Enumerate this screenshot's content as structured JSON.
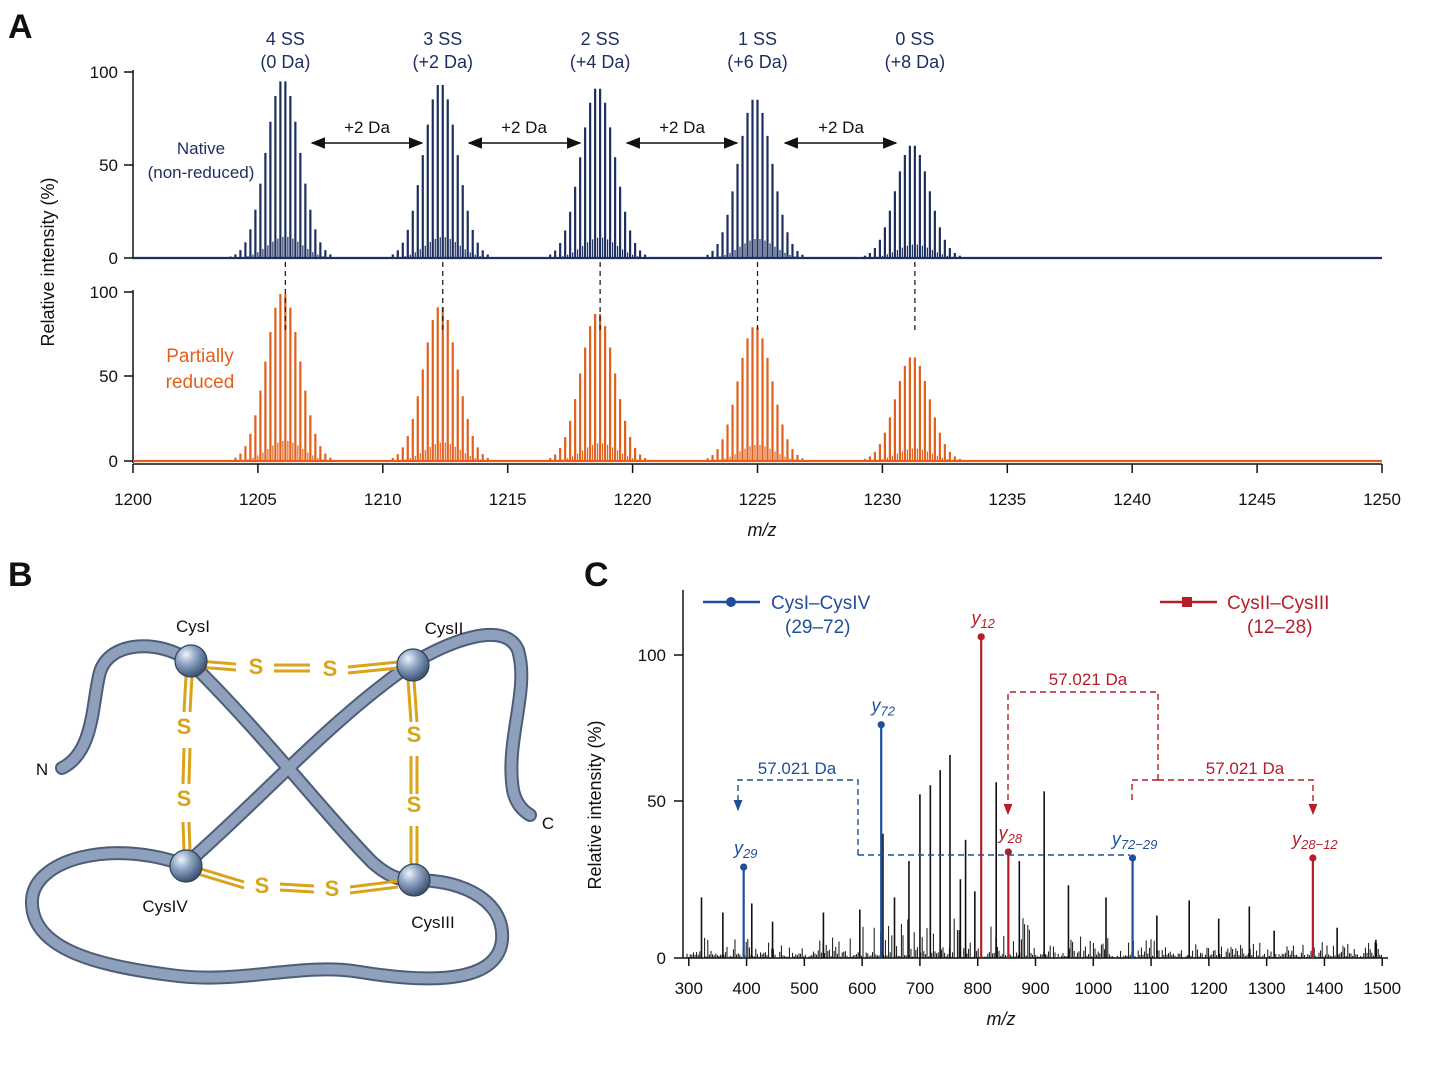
{
  "panels": {
    "a": "A",
    "b": "B",
    "c": "C"
  },
  "colors": {
    "native": "#1c2f5e",
    "reduced": "#e2601c",
    "blue": "#1f4e9a",
    "red": "#b51e28",
    "black": "#111111",
    "strand": "#8a9bb6",
    "gold": "#d9a31a"
  },
  "chart_data": [
    {
      "panel": "A",
      "type": "line",
      "xlabel": "m/z",
      "ylabel": "Relative intensity (%)",
      "xlim": [
        1200,
        1250
      ],
      "xticks": [
        "1200",
        "1205",
        "1210",
        "1215",
        "1220",
        "1225",
        "1230",
        "1235",
        "1240",
        "1245",
        "1250"
      ],
      "yticks": [
        "0",
        "50",
        "100"
      ],
      "ylim": [
        0,
        100
      ],
      "grid": false,
      "series": [
        {
          "name": "Native (non-reduced)",
          "label_lines": [
            "Native",
            "(non-reduced)"
          ],
          "color": "#1c2f5e",
          "clusters": [
            {
              "center": 1206.1,
              "max": 96
            },
            {
              "center": 1212.4,
              "max": 94
            },
            {
              "center": 1218.7,
              "max": 92
            },
            {
              "center": 1225.0,
              "max": 86
            },
            {
              "center": 1231.3,
              "max": 61
            }
          ]
        },
        {
          "name": "Partially reduced",
          "label_lines": [
            "Partially",
            "reduced"
          ],
          "color": "#e2601c",
          "clusters": [
            {
              "center": 1206.1,
              "max": 100
            },
            {
              "center": 1212.4,
              "max": 92
            },
            {
              "center": 1218.7,
              "max": 88
            },
            {
              "center": 1225.0,
              "max": 80
            },
            {
              "center": 1231.3,
              "max": 62
            }
          ]
        }
      ],
      "peak_labels": [
        {
          "line1": "4 SS",
          "line2": "(0 Da)",
          "x": 1206.1
        },
        {
          "line1": "3 SS",
          "line2": "(+2 Da)",
          "x": 1212.4
        },
        {
          "line1": "2 SS",
          "line2": "(+4 Da)",
          "x": 1218.7
        },
        {
          "line1": "1 SS",
          "line2": "(+6 Da)",
          "x": 1225.0
        },
        {
          "line1": "0 SS",
          "line2": "(+8 Da)",
          "x": 1231.3
        }
      ],
      "shift_labels": [
        "+2 Da",
        "+2 Da",
        "+2 Da",
        "+2 Da"
      ]
    },
    {
      "panel": "C",
      "type": "bar",
      "xlabel": "m/z",
      "ylabel": "Relative intensity (%)",
      "xlim": [
        290,
        1510
      ],
      "ylim": [
        0,
        115
      ],
      "xticks": [
        "300",
        "400",
        "500",
        "600",
        "700",
        "800",
        "900",
        "1000",
        "1100",
        "1200",
        "1300",
        "1400",
        "1500"
      ],
      "yticks": [
        "0",
        "50",
        "100"
      ],
      "legend": [
        {
          "line1": "CysI–CysIV",
          "line2": "(29–72)",
          "color": "#1f4e9a",
          "marker": "circle"
        },
        {
          "line1": "CysII–CysIII",
          "line2": "(12–28)",
          "color": "#b51e28",
          "marker": "square"
        }
      ],
      "labeled_peaks": [
        {
          "label": "y",
          "sub": "29",
          "x": 395,
          "y": 30,
          "color": "#1f4e9a"
        },
        {
          "label": "y",
          "sub": "72",
          "x": 633,
          "y": 77,
          "color": "#1f4e9a"
        },
        {
          "label": "y",
          "sub": "12",
          "x": 806,
          "y": 106,
          "color": "#b51e28"
        },
        {
          "label": "y",
          "sub": "28",
          "x": 853,
          "y": 35,
          "color": "#b51e28"
        },
        {
          "label": "y",
          "sub": "72−29",
          "x": 1068,
          "y": 33,
          "color": "#1f4e9a"
        },
        {
          "label": "y",
          "sub": "28−12",
          "x": 1380,
          "y": 33,
          "color": "#b51e28"
        }
      ],
      "mass_shifts": [
        "57.021 Da",
        "57.021 Da",
        "57.021 Da"
      ],
      "major_peaks": [
        {
          "x": 322,
          "y": 20
        },
        {
          "x": 359,
          "y": 15
        },
        {
          "x": 409,
          "y": 18
        },
        {
          "x": 445,
          "y": 12
        },
        {
          "x": 533,
          "y": 15
        },
        {
          "x": 596,
          "y": 16
        },
        {
          "x": 636,
          "y": 41
        },
        {
          "x": 656,
          "y": 20
        },
        {
          "x": 681,
          "y": 32
        },
        {
          "x": 700,
          "y": 54
        },
        {
          "x": 718,
          "y": 57
        },
        {
          "x": 735,
          "y": 62
        },
        {
          "x": 752,
          "y": 67
        },
        {
          "x": 770,
          "y": 26
        },
        {
          "x": 779,
          "y": 39
        },
        {
          "x": 795,
          "y": 22
        },
        {
          "x": 832,
          "y": 58
        },
        {
          "x": 872,
          "y": 32
        },
        {
          "x": 915,
          "y": 55
        },
        {
          "x": 957,
          "y": 24
        },
        {
          "x": 1022,
          "y": 20
        },
        {
          "x": 1110,
          "y": 14
        },
        {
          "x": 1166,
          "y": 19
        },
        {
          "x": 1217,
          "y": 13
        },
        {
          "x": 1270,
          "y": 17
        },
        {
          "x": 1313,
          "y": 9
        },
        {
          "x": 1422,
          "y": 10
        },
        {
          "x": 1489,
          "y": 6
        }
      ]
    }
  ],
  "diagram": {
    "termini": {
      "n": "N",
      "c": "C"
    },
    "residues": {
      "cys1": "CysI",
      "cys2": "CysII",
      "cys3": "CysIII",
      "cys4": "CysIV"
    },
    "sulfur": "S"
  }
}
